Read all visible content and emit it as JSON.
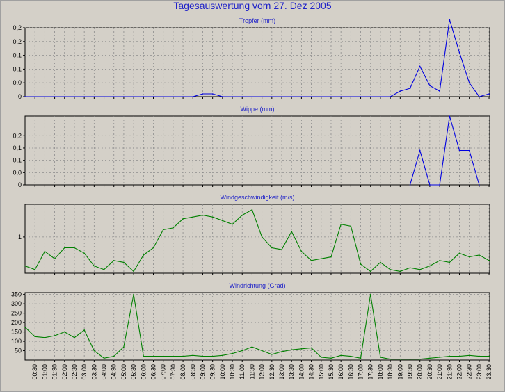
{
  "page_title": "Tagesauswertung vom 27. Dez 2005",
  "time_labels": [
    "00:30",
    "01:00",
    "01:30",
    "02:00",
    "02:30",
    "03:00",
    "03:30",
    "04:00",
    "04:30",
    "05:00",
    "05:30",
    "06:00",
    "06:30",
    "07:00",
    "07:30",
    "08:00",
    "08:30",
    "09:00",
    "09:30",
    "10:00",
    "10:30",
    "11:00",
    "11:30",
    "12:00",
    "12:30",
    "13:00",
    "13:30",
    "14:00",
    "14:30",
    "15:00",
    "15:30",
    "16:00",
    "16:30",
    "17:00",
    "17:30",
    "18:00",
    "18:30",
    "19:00",
    "19:30",
    "20:00",
    "20:30",
    "21:00",
    "21:30",
    "22:00",
    "22:30",
    "23:00",
    "23:30"
  ],
  "chart_data": [
    {
      "type": "line",
      "title": "Tropfer (mm)",
      "color": "#0000e0",
      "ylim": [
        0,
        0.25
      ],
      "ytick_labels": [
        "0",
        "0,0",
        "0,1",
        "0,1",
        "0,2",
        "0,2"
      ],
      "ytick_values": [
        0,
        0.05,
        0.1,
        0.15,
        0.2,
        0.25
      ],
      "x": [
        "00:00",
        "00:30",
        "01:00",
        "01:30",
        "02:00",
        "02:30",
        "03:00",
        "03:30",
        "04:00",
        "04:30",
        "05:00",
        "05:30",
        "06:00",
        "06:30",
        "07:00",
        "07:30",
        "08:00",
        "08:30",
        "09:00",
        "09:30",
        "10:00",
        "10:30",
        "11:00",
        "11:30",
        "12:00",
        "12:30",
        "13:00",
        "13:30",
        "14:00",
        "14:30",
        "15:00",
        "15:30",
        "16:00",
        "16:30",
        "17:00",
        "17:30",
        "18:00",
        "18:30",
        "19:00",
        "19:30",
        "20:00",
        "20:30",
        "21:00",
        "21:30",
        "22:00",
        "22:30",
        "23:00",
        "23:30"
      ],
      "values": [
        0,
        0,
        0,
        0,
        0,
        0,
        0,
        0,
        0,
        0,
        0,
        0,
        0,
        0,
        0,
        0,
        0,
        0,
        0.01,
        0.01,
        0,
        0,
        0,
        0,
        0,
        0,
        0,
        0,
        0,
        0,
        0,
        0,
        0,
        0,
        0,
        0,
        0,
        0,
        0.02,
        0.03,
        0.11,
        0.04,
        0.02,
        0.28,
        0.16,
        0.05,
        0,
        0.01
      ]
    },
    {
      "type": "line",
      "title": "Wippe (mm)",
      "color": "#0000e0",
      "ylim": [
        0,
        0.28
      ],
      "ytick_labels": [
        "0",
        "0,0",
        "0,1",
        "0,1",
        "0,2"
      ],
      "ytick_values": [
        0,
        0.05,
        0.1,
        0.15,
        0.2
      ],
      "x": [
        "19:30",
        "20:00",
        "20:30",
        "21:00",
        "21:30",
        "22:00",
        "22:30",
        "23:00"
      ],
      "values": [
        0,
        0.14,
        0,
        0,
        0.28,
        0.14,
        0.14,
        0
      ]
    },
    {
      "type": "line",
      "title": "Windgeschwindigkeit (m/s)",
      "color": "#008000",
      "ylim": [
        0,
        1.9
      ],
      "ytick_labels": [
        "1"
      ],
      "ytick_values": [
        1
      ],
      "x": [
        "00:00",
        "00:30",
        "01:00",
        "01:30",
        "02:00",
        "02:30",
        "03:00",
        "03:30",
        "04:00",
        "04:30",
        "05:00",
        "05:30",
        "06:00",
        "06:30",
        "07:00",
        "07:30",
        "08:00",
        "08:30",
        "09:00",
        "09:30",
        "10:00",
        "10:30",
        "11:00",
        "11:30",
        "12:00",
        "12:30",
        "13:00",
        "13:30",
        "14:00",
        "14:30",
        "15:00",
        "15:30",
        "16:00",
        "16:30",
        "17:00",
        "17:30",
        "18:00",
        "18:30",
        "19:00",
        "19:30",
        "20:00",
        "20:30",
        "21:00",
        "21:30",
        "22:00",
        "22:30",
        "23:00",
        "23:30"
      ],
      "values": [
        0.2,
        0.1,
        0.6,
        0.4,
        0.7,
        0.7,
        0.55,
        0.2,
        0.1,
        0.35,
        0.3,
        0.05,
        0.5,
        0.7,
        1.2,
        1.25,
        1.5,
        1.55,
        1.6,
        1.55,
        1.45,
        1.35,
        1.6,
        1.75,
        1.0,
        0.7,
        0.65,
        1.15,
        0.6,
        0.35,
        0.4,
        0.45,
        1.35,
        1.3,
        0.25,
        0.05,
        0.3,
        0.1,
        0.05,
        0.15,
        0.1,
        0.2,
        0.35,
        0.3,
        0.55,
        0.45,
        0.5,
        0.35
      ]
    },
    {
      "type": "line",
      "title": "Windrichtung (Grad)",
      "color": "#008000",
      "ylim": [
        0,
        360
      ],
      "ytick_labels": [
        "50",
        "100",
        "150",
        "200",
        "250",
        "300",
        "350"
      ],
      "ytick_values": [
        50,
        100,
        150,
        200,
        250,
        300,
        350
      ],
      "x": [
        "00:00",
        "00:30",
        "01:00",
        "01:30",
        "02:00",
        "02:30",
        "03:00",
        "03:30",
        "04:00",
        "04:30",
        "05:00",
        "05:30",
        "06:00",
        "06:30",
        "07:00",
        "07:30",
        "08:00",
        "08:30",
        "09:00",
        "09:30",
        "10:00",
        "10:30",
        "11:00",
        "11:30",
        "12:00",
        "12:30",
        "13:00",
        "13:30",
        "14:00",
        "14:30",
        "15:00",
        "15:30",
        "16:00",
        "16:30",
        "17:00",
        "17:30",
        "18:00",
        "18:30",
        "19:00",
        "19:30",
        "20:00",
        "20:30",
        "21:00",
        "21:30",
        "22:00",
        "22:30",
        "23:00",
        "23:30"
      ],
      "values": [
        175,
        125,
        120,
        130,
        150,
        120,
        160,
        50,
        10,
        20,
        70,
        350,
        20,
        20,
        20,
        20,
        20,
        25,
        20,
        20,
        25,
        35,
        50,
        70,
        50,
        30,
        45,
        55,
        60,
        65,
        15,
        10,
        25,
        20,
        10,
        350,
        15,
        5,
        5,
        5,
        5,
        10,
        15,
        20,
        20,
        25,
        20,
        20
      ]
    }
  ]
}
